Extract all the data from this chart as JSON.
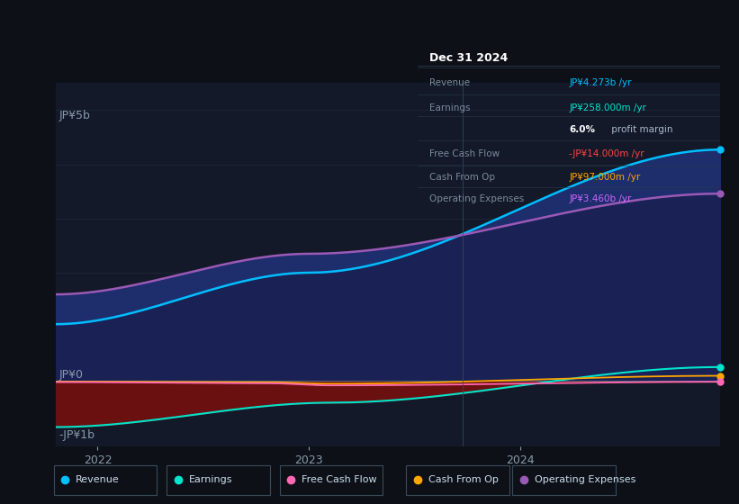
{
  "bg_color": "#0d1117",
  "plot_bg_color": "#131929",
  "y_label_top": "JP¥5b",
  "y_label_zero": "JP¥0",
  "y_label_neg": "-JP¥1b",
  "x_ticks": [
    "2022",
    "2023",
    "2024"
  ],
  "ylim_min": -1200000000.0,
  "ylim_max": 5500000000.0,
  "revenue_color": "#00bfff",
  "op_exp_color": "#9b59b6",
  "earnings_color": "#00e5cc",
  "fcf_color": "#ff69b4",
  "cfop_color": "#ffa500",
  "fill_rev_op": "#1e2d6b",
  "fill_op_zero": "#1a2255",
  "fill_neg_earn": "#6b1010",
  "info_bg": "#111820",
  "info_border": "#2a3a4a",
  "info_title": "Dec 31 2024",
  "info_title_color": "#ffffff",
  "info_label_color": "#8899aa",
  "legend_items": [
    {
      "label": "Revenue",
      "color": "#00bfff"
    },
    {
      "label": "Earnings",
      "color": "#00e5cc"
    },
    {
      "label": "Free Cash Flow",
      "color": "#ff69b4"
    },
    {
      "label": "Cash From Op",
      "color": "#ffa500"
    },
    {
      "label": "Operating Expenses",
      "color": "#9b59b6"
    }
  ]
}
